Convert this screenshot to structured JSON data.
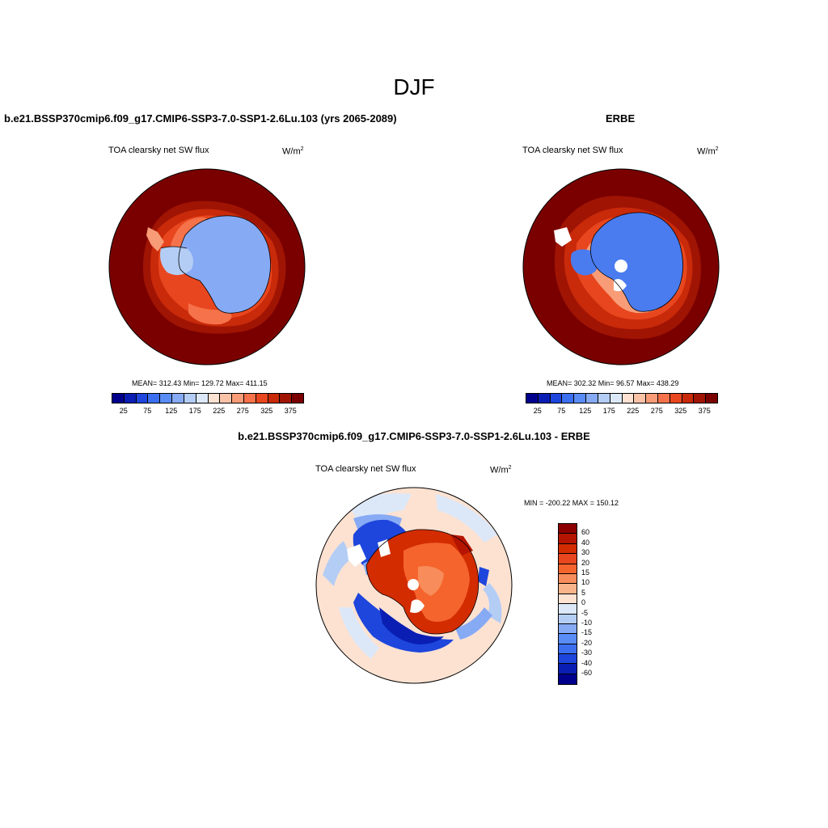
{
  "figure": {
    "title": "DJF"
  },
  "panels": [
    {
      "title": "b.e21.BSSP370cmip6.f09_g17.CMIP6-SSP3-7.0-SSP1-2.6Lu.103 (yrs 2065-2089)",
      "variable": "TOA clearsky net SW flux",
      "units": "W/m",
      "units_sup": "2",
      "stats": "MEAN= 312.43  Min= 129.72  Max= 411.15"
    },
    {
      "title": "ERBE",
      "variable": "TOA clearsky net SW flux",
      "units": "W/m",
      "units_sup": "2",
      "stats": "MEAN= 302.32  Min=  96.57  Max= 438.29"
    },
    {
      "title": "b.e21.BSSP370cmip6.f09_g17.CMIP6-SSP3-7.0-SSP1-2.6Lu.103 - ERBE",
      "variable": "TOA clearsky net SW flux",
      "units": "W/m",
      "units_sup": "2",
      "stats": "MIN = -200.22 MAX = 150.12"
    }
  ],
  "colorbar_abs": {
    "labels": [
      "25",
      "75",
      "125",
      "175",
      "225",
      "275",
      "325",
      "375"
    ],
    "colors": [
      "#00008c",
      "#0a1eb4",
      "#1e46dc",
      "#3c6ef0",
      "#5a8cf5",
      "#87aaf5",
      "#b4cdf5",
      "#dce8f8",
      "#fde2d2",
      "#fac3a8",
      "#f89c78",
      "#f5724a",
      "#e8461e",
      "#c82a0a",
      "#a01404",
      "#7a0000"
    ]
  },
  "colorbar_diff": {
    "labels": [
      "60",
      "40",
      "30",
      "20",
      "15",
      "10",
      "5",
      "0",
      "-5",
      "-10",
      "-15",
      "-20",
      "-30",
      "-40",
      "-60"
    ],
    "colors": [
      "#8c0000",
      "#b41400",
      "#d22c00",
      "#e8461e",
      "#f5642d",
      "#f88c5a",
      "#fab48c",
      "#fde2d2",
      "#dce8f8",
      "#b4cdf5",
      "#87aaf5",
      "#5a8cf5",
      "#3c6ef0",
      "#1e46dc",
      "#0a1eb4",
      "#00008c"
    ]
  }
}
